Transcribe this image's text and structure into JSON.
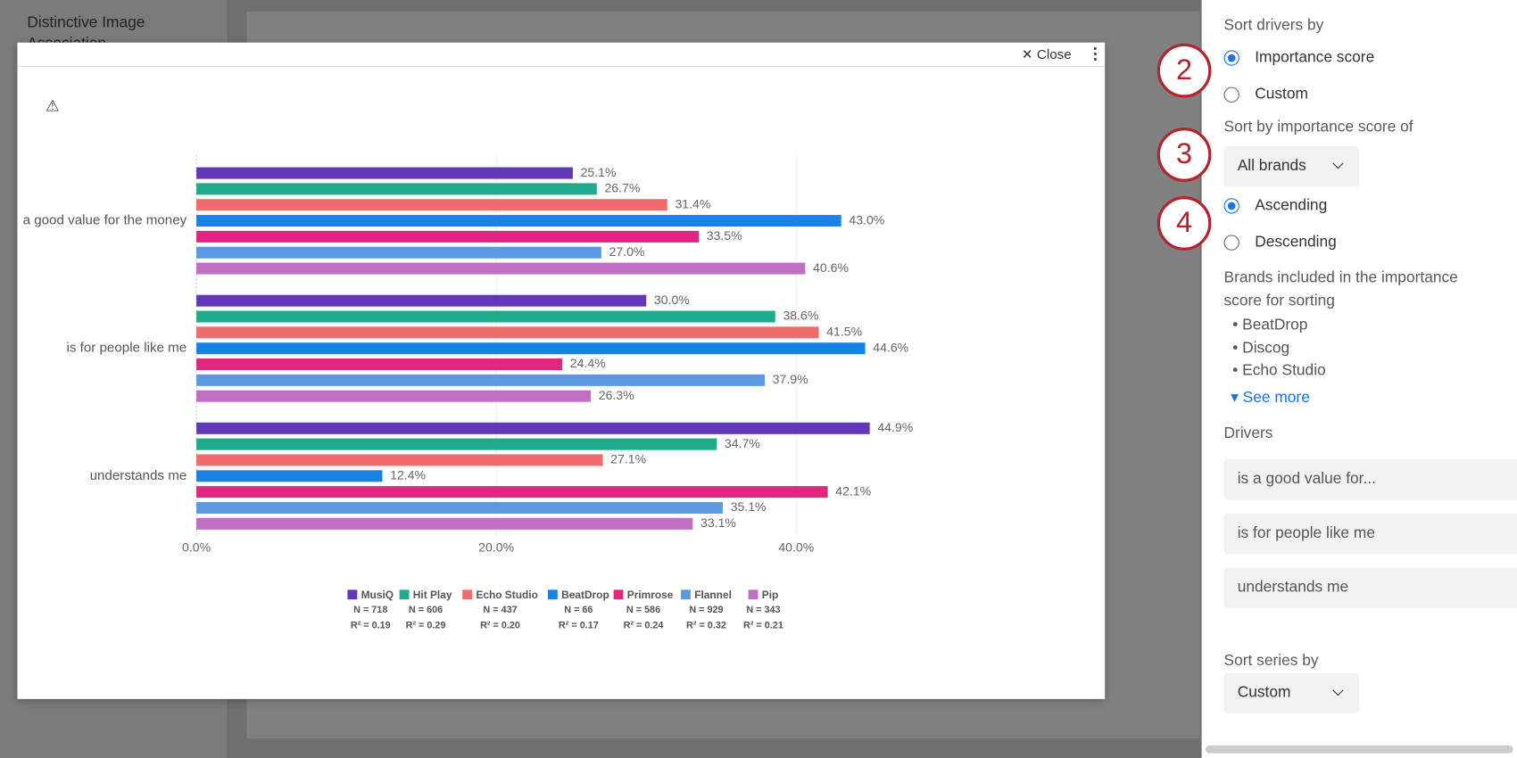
{
  "background": {
    "title": "Distinctive Image Association"
  },
  "modal": {
    "close": "Close"
  },
  "chart_data": {
    "type": "hbar",
    "categories": [
      "a good value for the money",
      "is for people like me",
      "understands me"
    ],
    "series": [
      {
        "name": "MusiQ",
        "color": "#6038b8",
        "n_label": "N = 718",
        "r2_label": "R² = 0.19",
        "values": [
          25.1,
          30.0,
          44.9
        ],
        "value_labels": [
          "25.1%",
          "30.0%",
          "44.9%"
        ]
      },
      {
        "name": "Hit Play",
        "color": "#1fab89",
        "n_label": "N = 606",
        "r2_label": "R² = 0.29",
        "values": [
          26.7,
          38.6,
          34.7
        ],
        "value_labels": [
          "26.7%",
          "38.6%",
          "34.7%"
        ]
      },
      {
        "name": "Echo Studio",
        "color": "#f06b6b",
        "n_label": "N = 437",
        "r2_label": "R² = 0.20",
        "values": [
          31.4,
          41.5,
          27.1
        ],
        "value_labels": [
          "31.4%",
          "41.5%",
          "27.1%"
        ]
      },
      {
        "name": "BeatDrop",
        "color": "#1a82e2",
        "n_label": "N = 66",
        "r2_label": "R² = 0.17",
        "values": [
          43.0,
          44.6,
          12.4
        ],
        "value_labels": [
          "43.0%",
          "44.6%",
          "12.4%"
        ]
      },
      {
        "name": "Primrose",
        "color": "#e0267e",
        "n_label": "N = 586",
        "r2_label": "R² = 0.24",
        "values": [
          33.5,
          24.4,
          42.1
        ],
        "value_labels": [
          "33.5%",
          "24.4%",
          "42.1%"
        ]
      },
      {
        "name": "Flannel",
        "color": "#5b9ae0",
        "n_label": "N = 929",
        "r2_label": "R² = 0.32",
        "values": [
          27.0,
          37.9,
          35.1
        ],
        "value_labels": [
          "27.0%",
          "37.9%",
          "35.1%"
        ]
      },
      {
        "name": "Pip",
        "color": "#c06ec4",
        "n_label": "N = 343",
        "r2_label": "R² = 0.21",
        "values": [
          40.6,
          26.3,
          33.1
        ],
        "value_labels": [
          "40.6%",
          "26.3%",
          "33.1%"
        ]
      }
    ],
    "xlim": [
      0,
      50
    ],
    "xticks": [
      {
        "value": 0,
        "label": "0.0%"
      },
      {
        "value": 20,
        "label": "20.0%"
      },
      {
        "value": 40,
        "label": "40.0%"
      }
    ],
    "grid": true
  },
  "panel": {
    "sort_drivers_by": "Sort drivers by",
    "steps": [
      2,
      3,
      4
    ],
    "importance_score": "Importance score",
    "custom": "Custom",
    "sort_by_score_of": "Sort by importance score of",
    "brand_dropdown": "All brands",
    "ascending": "Ascending",
    "descending": "Descending",
    "brands_included": "Brands included in the importance score for sorting",
    "brands": [
      "BeatDrop",
      "Discog",
      "Echo Studio"
    ],
    "see_more": "See more",
    "drivers_label": "Drivers",
    "drivers": [
      "is a good value for...",
      "is for people like me",
      "understands me"
    ],
    "sort_series_by": "Sort series by",
    "series_dropdown": "Custom"
  }
}
